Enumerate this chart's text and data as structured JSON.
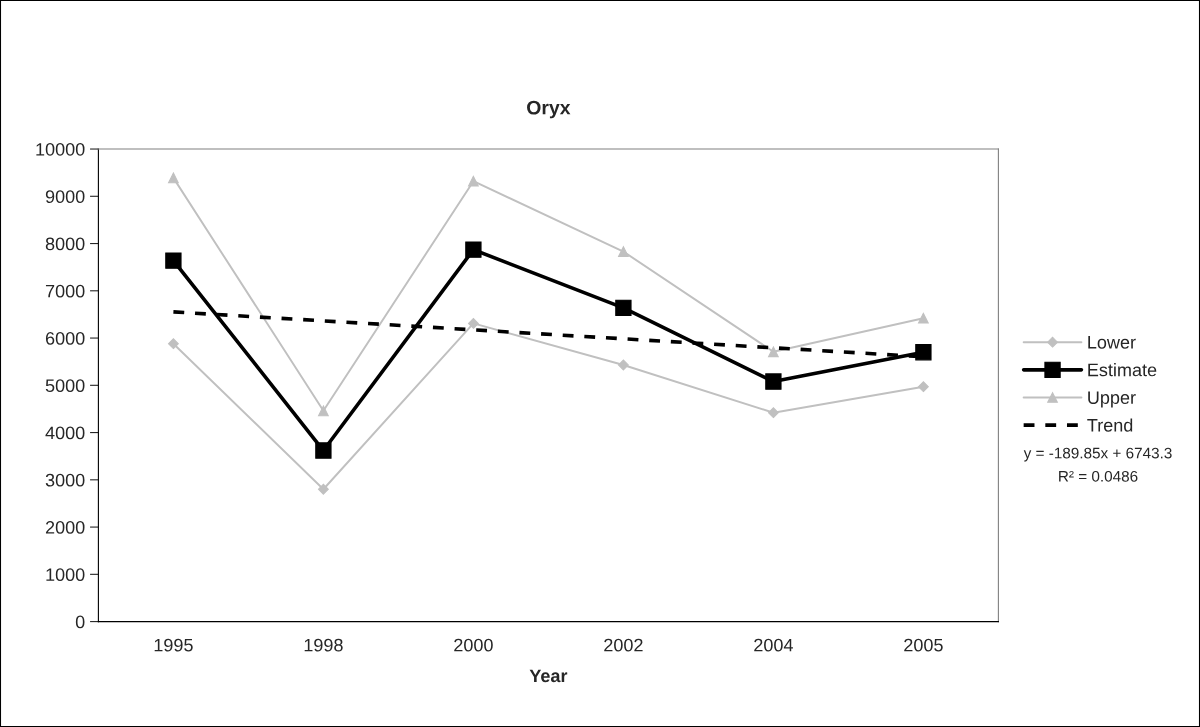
{
  "chart_data": {
    "type": "line",
    "title": "Oryx",
    "xlabel": "Year",
    "categories": [
      "1995",
      "1998",
      "2000",
      "2002",
      "2004",
      "2005"
    ],
    "series": [
      {
        "name": "Lower",
        "color": "#c0c0c0",
        "marker": "diamond",
        "line_style": "solid",
        "values": [
          5880,
          2800,
          6310,
          5430,
          4420,
          4970
        ]
      },
      {
        "name": "Estimate",
        "color": "#000000",
        "marker": "square",
        "line_style": "solid",
        "values": [
          7640,
          3620,
          7870,
          6640,
          5080,
          5700
        ]
      },
      {
        "name": "Upper",
        "color": "#c0c0c0",
        "marker": "triangle",
        "line_style": "solid",
        "values": [
          9390,
          4460,
          9320,
          7830,
          5710,
          6420
        ]
      },
      {
        "name": "Trend",
        "color": "#000000",
        "marker": "none",
        "line_style": "dashed",
        "values": [
          6553,
          6364,
          6174,
          5984,
          5794,
          5604
        ]
      }
    ],
    "ylim": [
      0,
      10000
    ],
    "yticks": [
      0,
      1000,
      2000,
      3000,
      4000,
      5000,
      6000,
      7000,
      8000,
      9000,
      10000
    ],
    "grid": false,
    "legend": "right",
    "annotations": [
      "y = -189.85x + 6743.3",
      "R² = 0.0486"
    ]
  }
}
